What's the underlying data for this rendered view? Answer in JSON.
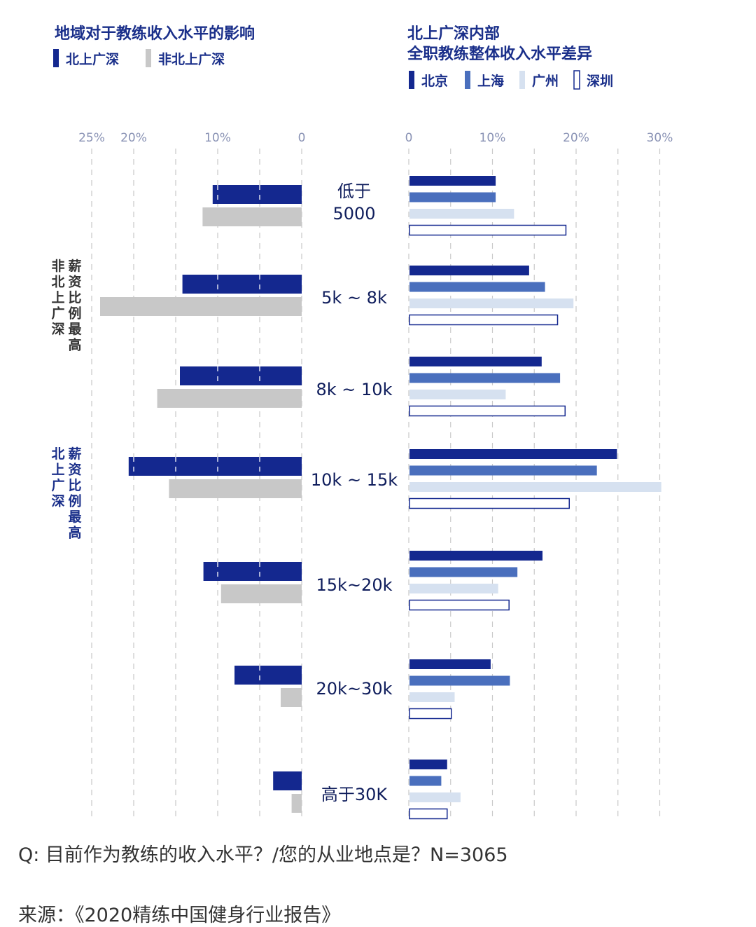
{
  "chart_data": [
    {
      "type": "bar",
      "orientation": "horizontal",
      "direction": "right-to-left",
      "title": "地域对于教练收入水平的影响",
      "legend": [
        "北上广深",
        "非北上广深"
      ],
      "categories": [
        "低于\n5000",
        "5k ~ 8k",
        "8k ~ 10k",
        "10k ~ 15k",
        "15k~20k",
        "20k~30k",
        "高于30K"
      ],
      "series": [
        {
          "name": "北上广深",
          "color": "#14288f",
          "values": [
            10.6,
            14.2,
            14.5,
            20.6,
            11.7,
            8.0,
            3.4
          ]
        },
        {
          "name": "非北上广深",
          "color": "#c8c8c8",
          "values": [
            11.8,
            24.0,
            17.2,
            15.8,
            9.6,
            2.5,
            1.2
          ]
        }
      ],
      "xlim": [
        0,
        25
      ],
      "ticks": [
        "25%",
        "20%",
        "10%",
        "0"
      ],
      "tick_values": [
        25,
        20,
        10,
        0
      ],
      "annotations": [
        "非北上广深",
        "薪资比例最高",
        "北上广深",
        "薪资比例最高"
      ]
    },
    {
      "type": "bar",
      "orientation": "horizontal",
      "title": "北上广深内部\n全职教练整体收入水平差异",
      "legend": [
        "北京",
        "上海",
        "广州",
        "深圳"
      ],
      "categories": [
        "低于\n5000",
        "5k ~ 8k",
        "8k ~ 10k",
        "10k ~ 15k",
        "15k~20k",
        "20k~30k",
        "高于30K"
      ],
      "series": [
        {
          "name": "北京",
          "color": "#14288f",
          "values": [
            10.3,
            14.3,
            15.8,
            24.8,
            15.9,
            9.7,
            4.5
          ]
        },
        {
          "name": "上海",
          "color": "#4a6fbd",
          "values": [
            10.3,
            16.2,
            18.0,
            22.4,
            12.9,
            12.0,
            3.8
          ]
        },
        {
          "name": "广州",
          "color": "#d6e1f0",
          "values": [
            12.5,
            19.6,
            11.5,
            30.1,
            10.6,
            5.4,
            6.1
          ]
        },
        {
          "name": "深圳",
          "color": "#ffffff",
          "stroke": "#14288f",
          "values": [
            18.7,
            17.7,
            18.6,
            19.1,
            11.9,
            5.0,
            4.5
          ]
        }
      ],
      "xlim": [
        0,
        30
      ],
      "ticks": [
        "0",
        "10%",
        "20%",
        "30%"
      ],
      "tick_values": [
        0,
        10,
        20,
        30
      ]
    }
  ],
  "footer": {
    "question": "Q: 目前作为教练的收入水平？/您的从业地点是？N=3065",
    "source": "来源：《2020精练中国健身行业报告》"
  }
}
